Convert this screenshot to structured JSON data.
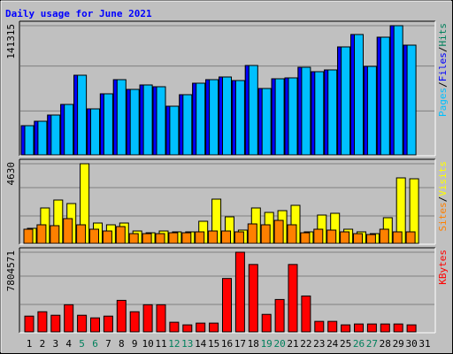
{
  "title": "Daily usage for June 2021",
  "legend_separator": "/",
  "categories": [
    "1",
    "2",
    "3",
    "4",
    "5",
    "6",
    "7",
    "8",
    "9",
    "10",
    "11",
    "12",
    "13",
    "14",
    "15",
    "16",
    "17",
    "18",
    "19",
    "20",
    "21",
    "22",
    "23",
    "24",
    "25",
    "26",
    "27",
    "28",
    "29",
    "30",
    "31"
  ],
  "category_colors": [
    "#000000",
    "#000000",
    "#000000",
    "#000000",
    "#00805c",
    "#00805c",
    "#000000",
    "#000000",
    "#000000",
    "#000000",
    "#000000",
    "#00805c",
    "#00805c",
    "#000000",
    "#000000",
    "#000000",
    "#000000",
    "#000000",
    "#00805c",
    "#00805c",
    "#000000",
    "#000000",
    "#000000",
    "#000000",
    "#000000",
    "#00805c",
    "#00805c",
    "#000000",
    "#000000",
    "#000000",
    "#000000"
  ],
  "chart_data": [
    {
      "type": "bar",
      "ylim": [
        0,
        141315
      ],
      "yticks": [
        141315
      ],
      "series": [
        {
          "name": "Hits",
          "color": "#00805c",
          "values": [
            31940,
            36780,
            43560,
            55170,
            87110,
            50330,
            66790,
            82270,
            71630,
            76470,
            74530,
            53230,
            65820,
            78400,
            82270,
            85180,
            81300,
            97760,
            72600,
            83240,
            84210,
            95820,
            90980,
            92920,
            118090,
            131640,
            96790,
            128730,
            141315,
            120020,
            null
          ]
        },
        {
          "name": "Files",
          "color": "#0000ff",
          "values": [
            31940,
            36780,
            43560,
            55170,
            87110,
            50330,
            66790,
            82270,
            71630,
            76470,
            74530,
            53230,
            65820,
            78400,
            82270,
            85180,
            81300,
            97760,
            72600,
            83240,
            84210,
            95820,
            90980,
            92920,
            118090,
            131640,
            96790,
            128730,
            141315,
            120020,
            null
          ]
        },
        {
          "name": "Pages",
          "color": "#00c0ff",
          "values": [
            31940,
            36780,
            43560,
            55170,
            87110,
            50330,
            66790,
            82270,
            71630,
            76470,
            74530,
            53230,
            65820,
            78400,
            82270,
            85180,
            81300,
            97760,
            72600,
            83240,
            84210,
            95820,
            90980,
            92920,
            118090,
            131640,
            96790,
            128730,
            141315,
            120020,
            null
          ]
        }
      ]
    },
    {
      "type": "bar",
      "ylim": [
        0,
        4630
      ],
      "yticks": [
        4630
      ],
      "series": [
        {
          "name": "Visits",
          "color": "#ffff00",
          "values": [
            875,
            2058,
            2520,
            2315,
            4630,
            1183,
            1080,
            1183,
            720,
            617,
            720,
            669,
            669,
            1286,
            2572,
            1543,
            772,
            2058,
            1800,
            1903,
            2212,
            669,
            1646,
            1749,
            823,
            669,
            566,
            1492,
            3807,
            3755,
            null
          ]
        },
        {
          "name": "Sites",
          "color": "#ff8000",
          "values": [
            823,
            1080,
            1029,
            1440,
            1080,
            823,
            720,
            977,
            566,
            566,
            566,
            617,
            617,
            669,
            720,
            720,
            669,
            1132,
            1080,
            1337,
            1080,
            617,
            823,
            772,
            669,
            566,
            514,
            823,
            669,
            669,
            null
          ]
        }
      ]
    },
    {
      "type": "bar",
      "ylim": [
        0,
        7804571
      ],
      "yticks": [
        7804571
      ],
      "series": [
        {
          "name": "KBytes",
          "color": "#ff0000",
          "values": [
            1543760,
            1972600,
            1629500,
            2658700,
            1629500,
            1372200,
            1543800,
            3087500,
            1972600,
            2658700,
            2658700,
            943400,
            686100,
            857700,
            857700,
            5231700,
            7804571,
            6603900,
            1715300,
            3173300,
            6603900,
            3516400,
            1029200,
            1029200,
            686100,
            771900,
            771900,
            771900,
            771900,
            686100,
            null
          ]
        }
      ]
    }
  ]
}
